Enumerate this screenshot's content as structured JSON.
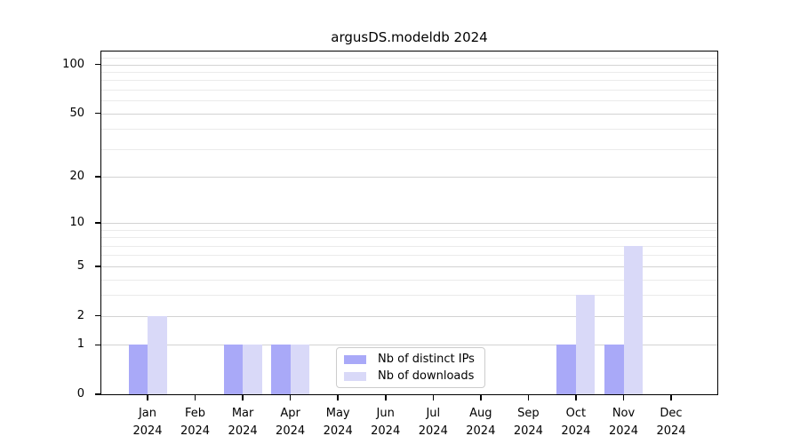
{
  "title": "argusDS.modeldb 2024",
  "chart_data": {
    "type": "bar",
    "title": "argusDS.modeldb 2024",
    "xlabel": "",
    "ylabel": "",
    "categories": [
      {
        "month": "Jan",
        "year": "2024"
      },
      {
        "month": "Feb",
        "year": "2024"
      },
      {
        "month": "Mar",
        "year": "2024"
      },
      {
        "month": "Apr",
        "year": "2024"
      },
      {
        "month": "May",
        "year": "2024"
      },
      {
        "month": "Jun",
        "year": "2024"
      },
      {
        "month": "Jul",
        "year": "2024"
      },
      {
        "month": "Aug",
        "year": "2024"
      },
      {
        "month": "Sep",
        "year": "2024"
      },
      {
        "month": "Oct",
        "year": "2024"
      },
      {
        "month": "Nov",
        "year": "2024"
      },
      {
        "month": "Dec",
        "year": "2024"
      }
    ],
    "series": [
      {
        "name": "Nb of distinct IPs",
        "color": "#a9a9f8",
        "values": [
          1,
          0,
          1,
          1,
          0,
          0,
          0,
          0,
          0,
          1,
          1,
          0
        ]
      },
      {
        "name": "Nb of downloads",
        "color": "#d9d9f8",
        "values": [
          2,
          0,
          1,
          1,
          0,
          0,
          0,
          0,
          0,
          3,
          7,
          0
        ]
      }
    ],
    "y_axis": {
      "scale": "log10(1+v)",
      "ymin": 0,
      "ymax": 120,
      "major_ticks": [
        0,
        1,
        2,
        5,
        10,
        20,
        50,
        100
      ],
      "minor_ticks": [
        3,
        4,
        6,
        7,
        8,
        9,
        30,
        40,
        60,
        70,
        80,
        90,
        110
      ]
    },
    "legend": {
      "position": "lower-center"
    },
    "grid": true,
    "colors": {
      "major_grid": "#d3d3d3",
      "minor_grid": "#ebebeb",
      "spine": "#000000",
      "background": "#ffffff"
    }
  }
}
